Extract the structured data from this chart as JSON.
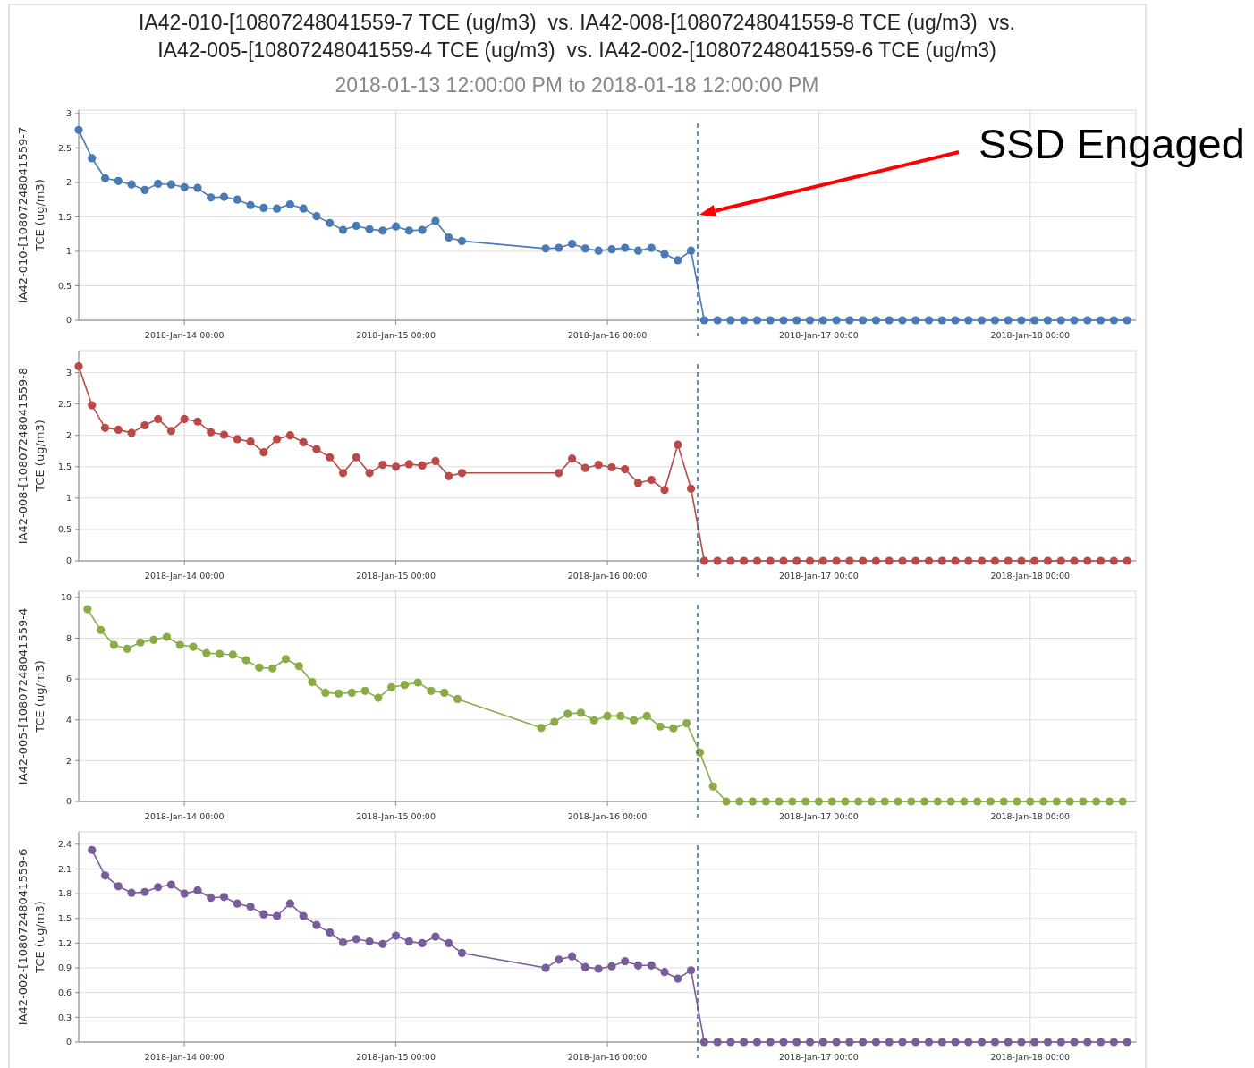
{
  "chart_data": [
    {
      "type": "line",
      "title": "IA42-010-[10807248041559-7 TCE (ug/m3)  vs. IA42-008-[10807248041559-8 TCE (ug/m3)  vs.\nIA42-005-[10807248041559-4 TCE (ug/m3)  vs. IA42-002-[10807248041559-6 TCE (ug/m3)",
      "subtitle": "2018-01-13 12:00:00 PM to 2018-01-18 12:00:00 PM",
      "ylabel": "IA42-010-[10807248041559-7\nTCE (ug/m3)",
      "grid": true,
      "marker": "circle",
      "xlim": [
        "2018-01-13T12:00",
        "2018-01-18T12:00"
      ],
      "xticks": [
        {
          "value": "2018-01-14T00:00",
          "label": "2018-Jan-14 00:00"
        },
        {
          "value": "2018-01-15T00:00",
          "label": "2018-Jan-15 00:00"
        },
        {
          "value": "2018-01-16T00:00",
          "label": "2018-Jan-16 00:00"
        },
        {
          "value": "2018-01-17T00:00",
          "label": "2018-Jan-17 00:00"
        },
        {
          "value": "2018-01-18T00:00",
          "label": "2018-Jan-18 00:00"
        }
      ],
      "ylim": [
        0,
        3.05
      ],
      "yticks": [
        0,
        0.5,
        1,
        1.5,
        2,
        2.5,
        3
      ],
      "ref_lines": [
        {
          "axis": "x",
          "value": "2018-01-16T10:15",
          "color": "#2e6db4",
          "line_style": "dashed"
        }
      ],
      "annotations": [
        "SSD Engaged"
      ],
      "series": [
        {
          "color": "#4a7ab5",
          "x": [
            "2018-01-13T12:00",
            "2018-01-13T13:30",
            "2018-01-13T15:00",
            "2018-01-13T16:30",
            "2018-01-13T18:00",
            "2018-01-13T19:30",
            "2018-01-13T21:00",
            "2018-01-13T22:30",
            "2018-01-14T00:00",
            "2018-01-14T01:30",
            "2018-01-14T03:00",
            "2018-01-14T04:30",
            "2018-01-14T06:00",
            "2018-01-14T07:30",
            "2018-01-14T09:00",
            "2018-01-14T10:30",
            "2018-01-14T12:00",
            "2018-01-14T13:30",
            "2018-01-14T15:00",
            "2018-01-14T16:30",
            "2018-01-14T18:00",
            "2018-01-14T19:30",
            "2018-01-14T21:00",
            "2018-01-14T22:30",
            "2018-01-15T00:00",
            "2018-01-15T01:30",
            "2018-01-15T03:00",
            "2018-01-15T04:30",
            "2018-01-15T06:00",
            "2018-01-15T07:30",
            "2018-01-15T17:00",
            "2018-01-15T18:30",
            "2018-01-15T20:00",
            "2018-01-15T21:30",
            "2018-01-15T23:00",
            "2018-01-16T00:30",
            "2018-01-16T02:00",
            "2018-01-16T03:30",
            "2018-01-16T05:00",
            "2018-01-16T06:30",
            "2018-01-16T08:00",
            "2018-01-16T09:30",
            "2018-01-16T11:00",
            "2018-01-16T12:30",
            "2018-01-16T14:00",
            "2018-01-16T15:30",
            "2018-01-16T17:00",
            "2018-01-16T18:30",
            "2018-01-16T20:00",
            "2018-01-16T21:30",
            "2018-01-16T23:00",
            "2018-01-17T00:30",
            "2018-01-17T02:00",
            "2018-01-17T03:30",
            "2018-01-17T05:00",
            "2018-01-17T06:30",
            "2018-01-17T08:00",
            "2018-01-17T09:30",
            "2018-01-17T11:00",
            "2018-01-17T12:30",
            "2018-01-17T14:00",
            "2018-01-17T15:30",
            "2018-01-17T17:00",
            "2018-01-17T18:30",
            "2018-01-17T20:00",
            "2018-01-17T21:30",
            "2018-01-17T23:00",
            "2018-01-18T00:30",
            "2018-01-18T02:00",
            "2018-01-18T03:30",
            "2018-01-18T05:00",
            "2018-01-18T06:30",
            "2018-01-18T08:00",
            "2018-01-18T09:30",
            "2018-01-18T11:00"
          ],
          "values": [
            2.76,
            2.35,
            2.06,
            2.02,
            1.97,
            1.89,
            1.98,
            1.97,
            1.93,
            1.92,
            1.78,
            1.79,
            1.75,
            1.67,
            1.63,
            1.62,
            1.68,
            1.62,
            1.51,
            1.41,
            1.31,
            1.37,
            1.32,
            1.3,
            1.36,
            1.3,
            1.31,
            1.44,
            1.2,
            1.15,
            1.04,
            1.05,
            1.11,
            1.04,
            1.01,
            1.03,
            1.05,
            1.01,
            1.05,
            0.96,
            0.87,
            1.01,
            0,
            0,
            0,
            0,
            0,
            0,
            0,
            0,
            0,
            0,
            0,
            0,
            0,
            0,
            0,
            0,
            0,
            0,
            0,
            0,
            0,
            0,
            0,
            0,
            0,
            0,
            0,
            0,
            0,
            0,
            0,
            0,
            0
          ]
        }
      ]
    },
    {
      "type": "line",
      "ylabel": "IA42-008-[10807248041559-8\nTCE (ug/m3)",
      "grid": true,
      "marker": "circle",
      "xlim": [
        "2018-01-13T12:00",
        "2018-01-18T12:00"
      ],
      "xticks": [
        {
          "value": "2018-01-14T00:00",
          "label": "2018-Jan-14 00:00"
        },
        {
          "value": "2018-01-15T00:00",
          "label": "2018-Jan-15 00:00"
        },
        {
          "value": "2018-01-16T00:00",
          "label": "2018-Jan-16 00:00"
        },
        {
          "value": "2018-01-17T00:00",
          "label": "2018-Jan-17 00:00"
        },
        {
          "value": "2018-01-18T00:00",
          "label": "2018-Jan-18 00:00"
        }
      ],
      "ylim": [
        0,
        3.35
      ],
      "yticks": [
        0,
        0.5,
        1,
        1.5,
        2,
        2.5,
        3
      ],
      "ref_lines": [
        {
          "axis": "x",
          "value": "2018-01-16T10:15",
          "color": "#2e6db4",
          "line_style": "dashed"
        }
      ],
      "series": [
        {
          "color": "#b94a48",
          "x": [
            "2018-01-13T12:00",
            "2018-01-13T13:30",
            "2018-01-13T15:00",
            "2018-01-13T16:30",
            "2018-01-13T18:00",
            "2018-01-13T19:30",
            "2018-01-13T21:00",
            "2018-01-13T22:30",
            "2018-01-14T00:00",
            "2018-01-14T01:30",
            "2018-01-14T03:00",
            "2018-01-14T04:30",
            "2018-01-14T06:00",
            "2018-01-14T07:30",
            "2018-01-14T09:00",
            "2018-01-14T10:30",
            "2018-01-14T12:00",
            "2018-01-14T13:30",
            "2018-01-14T15:00",
            "2018-01-14T16:30",
            "2018-01-14T18:00",
            "2018-01-14T19:30",
            "2018-01-14T21:00",
            "2018-01-14T22:30",
            "2018-01-15T00:00",
            "2018-01-15T01:30",
            "2018-01-15T03:00",
            "2018-01-15T04:30",
            "2018-01-15T06:00",
            "2018-01-15T07:30",
            "2018-01-15T18:30",
            "2018-01-15T20:00",
            "2018-01-15T21:30",
            "2018-01-15T23:00",
            "2018-01-16T00:30",
            "2018-01-16T02:00",
            "2018-01-16T03:30",
            "2018-01-16T05:00",
            "2018-01-16T06:30",
            "2018-01-16T08:00",
            "2018-01-16T09:30",
            "2018-01-16T11:00",
            "2018-01-16T12:30",
            "2018-01-16T14:00",
            "2018-01-16T15:30",
            "2018-01-16T17:00",
            "2018-01-16T18:30",
            "2018-01-16T20:00",
            "2018-01-16T21:30",
            "2018-01-16T23:00",
            "2018-01-17T00:30",
            "2018-01-17T02:00",
            "2018-01-17T03:30",
            "2018-01-17T05:00",
            "2018-01-17T06:30",
            "2018-01-17T08:00",
            "2018-01-17T09:30",
            "2018-01-17T11:00",
            "2018-01-17T12:30",
            "2018-01-17T14:00",
            "2018-01-17T15:30",
            "2018-01-17T17:00",
            "2018-01-17T18:30",
            "2018-01-17T20:00",
            "2018-01-17T21:30",
            "2018-01-17T23:00",
            "2018-01-18T00:30",
            "2018-01-18T02:00",
            "2018-01-18T03:30",
            "2018-01-18T05:00",
            "2018-01-18T06:30",
            "2018-01-18T08:00",
            "2018-01-18T09:30",
            "2018-01-18T11:00"
          ],
          "values": [
            3.1,
            2.48,
            2.12,
            2.09,
            2.04,
            2.16,
            2.26,
            2.07,
            2.26,
            2.22,
            2.05,
            2.01,
            1.94,
            1.9,
            1.73,
            1.94,
            2.0,
            1.89,
            1.78,
            1.65,
            1.4,
            1.65,
            1.4,
            1.53,
            1.5,
            1.54,
            1.52,
            1.59,
            1.35,
            1.4,
            1.4,
            1.63,
            1.48,
            1.53,
            1.49,
            1.46,
            1.24,
            1.29,
            1.13,
            1.85,
            1.15,
            0,
            0,
            0,
            0,
            0,
            0,
            0,
            0,
            0,
            0,
            0,
            0,
            0,
            0,
            0,
            0,
            0,
            0,
            0,
            0,
            0,
            0,
            0,
            0,
            0,
            0,
            0,
            0,
            0,
            0,
            0,
            0,
            0
          ]
        }
      ]
    },
    {
      "type": "line",
      "ylabel": "IA42-005-[10807248041559-4\nTCE (ug/m3)",
      "grid": true,
      "marker": "circle",
      "xlim": [
        "2018-01-13T12:00",
        "2018-01-18T12:00"
      ],
      "xticks": [
        {
          "value": "2018-01-14T00:00",
          "label": "2018-Jan-14 00:00"
        },
        {
          "value": "2018-01-15T00:00",
          "label": "2018-Jan-15 00:00"
        },
        {
          "value": "2018-01-16T00:00",
          "label": "2018-Jan-16 00:00"
        },
        {
          "value": "2018-01-17T00:00",
          "label": "2018-Jan-17 00:00"
        },
        {
          "value": "2018-01-18T00:00",
          "label": "2018-Jan-18 00:00"
        }
      ],
      "ylim": [
        0,
        10.3
      ],
      "yticks": [
        0,
        2,
        4,
        6,
        8,
        10
      ],
      "ref_lines": [
        {
          "axis": "x",
          "value": "2018-01-16T10:15",
          "color": "#2e6db4",
          "line_style": "dashed"
        }
      ],
      "series": [
        {
          "color": "#8aac45",
          "x": [
            "2018-01-13T13:00",
            "2018-01-13T14:30",
            "2018-01-13T16:00",
            "2018-01-13T17:30",
            "2018-01-13T19:00",
            "2018-01-13T20:30",
            "2018-01-13T22:00",
            "2018-01-13T23:30",
            "2018-01-14T01:00",
            "2018-01-14T02:30",
            "2018-01-14T04:00",
            "2018-01-14T05:30",
            "2018-01-14T07:00",
            "2018-01-14T08:30",
            "2018-01-14T10:00",
            "2018-01-14T11:30",
            "2018-01-14T13:00",
            "2018-01-14T14:30",
            "2018-01-14T16:00",
            "2018-01-14T17:30",
            "2018-01-14T19:00",
            "2018-01-14T20:30",
            "2018-01-14T22:00",
            "2018-01-14T23:30",
            "2018-01-15T01:00",
            "2018-01-15T02:30",
            "2018-01-15T04:00",
            "2018-01-15T05:30",
            "2018-01-15T07:00",
            "2018-01-15T16:30",
            "2018-01-15T18:00",
            "2018-01-15T19:30",
            "2018-01-15T21:00",
            "2018-01-15T22:30",
            "2018-01-16T00:00",
            "2018-01-16T01:30",
            "2018-01-16T03:00",
            "2018-01-16T04:30",
            "2018-01-16T06:00",
            "2018-01-16T07:30",
            "2018-01-16T09:00",
            "2018-01-16T10:30",
            "2018-01-16T12:00",
            "2018-01-16T13:30",
            "2018-01-16T15:00",
            "2018-01-16T16:30",
            "2018-01-16T18:00",
            "2018-01-16T19:30",
            "2018-01-16T21:00",
            "2018-01-16T22:30",
            "2018-01-17T00:00",
            "2018-01-17T01:30",
            "2018-01-17T03:00",
            "2018-01-17T04:30",
            "2018-01-17T06:00",
            "2018-01-17T07:30",
            "2018-01-17T09:00",
            "2018-01-17T10:30",
            "2018-01-17T12:00",
            "2018-01-17T13:30",
            "2018-01-17T15:00",
            "2018-01-17T16:30",
            "2018-01-17T18:00",
            "2018-01-17T19:30",
            "2018-01-17T21:00",
            "2018-01-17T22:30",
            "2018-01-18T00:00",
            "2018-01-18T01:30",
            "2018-01-18T03:00",
            "2018-01-18T04:30",
            "2018-01-18T06:00",
            "2018-01-18T07:30",
            "2018-01-18T09:00",
            "2018-01-18T10:30"
          ],
          "values": [
            9.42,
            8.4,
            7.67,
            7.48,
            7.79,
            7.92,
            8.06,
            7.67,
            7.58,
            7.27,
            7.23,
            7.19,
            6.92,
            6.56,
            6.52,
            6.98,
            6.63,
            5.85,
            5.33,
            5.29,
            5.33,
            5.42,
            5.08,
            5.6,
            5.71,
            5.83,
            5.42,
            5.33,
            5.02,
            3.6,
            3.9,
            4.29,
            4.35,
            3.98,
            4.19,
            4.19,
            3.98,
            4.19,
            3.67,
            3.58,
            3.83,
            2.4,
            0.73,
            0,
            0,
            0,
            0,
            0,
            0,
            0,
            0,
            0,
            0,
            0,
            0,
            0,
            0,
            0,
            0,
            0,
            0,
            0,
            0,
            0,
            0,
            0,
            0,
            0,
            0,
            0,
            0,
            0,
            0,
            0
          ]
        }
      ]
    },
    {
      "type": "line",
      "ylabel": "IA42-002-[10807248041559-6\nTCE (ug/m3)",
      "grid": true,
      "marker": "circle",
      "xlim": [
        "2018-01-13T12:00",
        "2018-01-18T12:00"
      ],
      "xticks": [
        {
          "value": "2018-01-14T00:00",
          "label": "2018-Jan-14 00:00"
        },
        {
          "value": "2018-01-15T00:00",
          "label": "2018-Jan-15 00:00"
        },
        {
          "value": "2018-01-16T00:00",
          "label": "2018-Jan-16 00:00"
        },
        {
          "value": "2018-01-17T00:00",
          "label": "2018-Jan-17 00:00"
        },
        {
          "value": "2018-01-18T00:00",
          "label": "2018-Jan-18 00:00"
        }
      ],
      "ylim": [
        0,
        2.55
      ],
      "yticks": [
        0,
        0.3,
        0.6,
        0.9,
        1.2,
        1.5,
        1.8,
        2.1,
        2.4
      ],
      "ref_lines": [
        {
          "axis": "x",
          "value": "2018-01-16T10:15",
          "color": "#2e6db4",
          "line_style": "dashed"
        }
      ],
      "series": [
        {
          "color": "#7a5c9a",
          "x": [
            "2018-01-13T13:30",
            "2018-01-13T15:00",
            "2018-01-13T16:30",
            "2018-01-13T18:00",
            "2018-01-13T19:30",
            "2018-01-13T21:00",
            "2018-01-13T22:30",
            "2018-01-14T00:00",
            "2018-01-14T01:30",
            "2018-01-14T03:00",
            "2018-01-14T04:30",
            "2018-01-14T06:00",
            "2018-01-14T07:30",
            "2018-01-14T09:00",
            "2018-01-14T10:30",
            "2018-01-14T12:00",
            "2018-01-14T13:30",
            "2018-01-14T15:00",
            "2018-01-14T16:30",
            "2018-01-14T18:00",
            "2018-01-14T19:30",
            "2018-01-14T21:00",
            "2018-01-14T22:30",
            "2018-01-15T00:00",
            "2018-01-15T01:30",
            "2018-01-15T03:00",
            "2018-01-15T04:30",
            "2018-01-15T06:00",
            "2018-01-15T07:30",
            "2018-01-15T17:00",
            "2018-01-15T18:30",
            "2018-01-15T20:00",
            "2018-01-15T21:30",
            "2018-01-15T23:00",
            "2018-01-16T00:30",
            "2018-01-16T02:00",
            "2018-01-16T03:30",
            "2018-01-16T05:00",
            "2018-01-16T06:30",
            "2018-01-16T08:00",
            "2018-01-16T09:30",
            "2018-01-16T11:00",
            "2018-01-16T12:30",
            "2018-01-16T14:00",
            "2018-01-16T15:30",
            "2018-01-16T17:00",
            "2018-01-16T18:30",
            "2018-01-16T20:00",
            "2018-01-16T21:30",
            "2018-01-16T23:00",
            "2018-01-17T00:30",
            "2018-01-17T02:00",
            "2018-01-17T03:30",
            "2018-01-17T05:00",
            "2018-01-17T06:30",
            "2018-01-17T08:00",
            "2018-01-17T09:30",
            "2018-01-17T11:00",
            "2018-01-17T12:30",
            "2018-01-17T14:00",
            "2018-01-17T15:30",
            "2018-01-17T17:00",
            "2018-01-17T18:30",
            "2018-01-17T20:00",
            "2018-01-17T21:30",
            "2018-01-17T23:00",
            "2018-01-18T00:30",
            "2018-01-18T02:00",
            "2018-01-18T03:30",
            "2018-01-18T05:00",
            "2018-01-18T06:30",
            "2018-01-18T08:00",
            "2018-01-18T09:30",
            "2018-01-18T11:00"
          ],
          "values": [
            2.33,
            2.02,
            1.89,
            1.81,
            1.82,
            1.88,
            1.91,
            1.8,
            1.84,
            1.75,
            1.76,
            1.68,
            1.64,
            1.55,
            1.53,
            1.68,
            1.53,
            1.42,
            1.33,
            1.21,
            1.25,
            1.22,
            1.19,
            1.29,
            1.22,
            1.2,
            1.28,
            1.2,
            1.08,
            0.9,
            1.0,
            1.04,
            0.91,
            0.89,
            0.92,
            0.98,
            0.93,
            0.93,
            0.85,
            0.77,
            0.87,
            0,
            0,
            0,
            0,
            0,
            0,
            0,
            0,
            0,
            0,
            0,
            0,
            0,
            0,
            0,
            0,
            0,
            0,
            0,
            0,
            0,
            0,
            0,
            0,
            0,
            0,
            0,
            0,
            0,
            0,
            0,
            0,
            0
          ]
        }
      ]
    }
  ]
}
